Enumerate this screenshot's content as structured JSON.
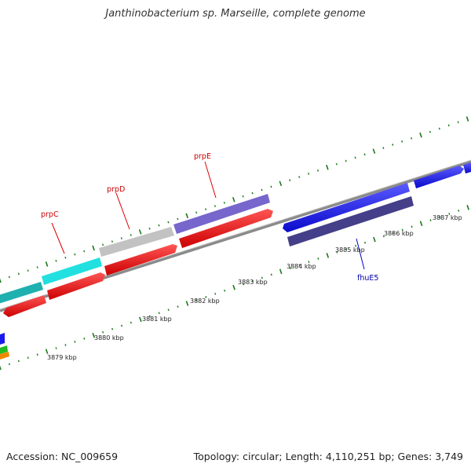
{
  "title": "Janthinobacterium sp. Marseille, complete genome",
  "footer": {
    "accession": "Accession: NC_009659",
    "summary": "Topology: circular; Length: 4,110,251 bp; Genes: 3,749"
  },
  "ruler": {
    "labels": [
      "3879 kbp",
      "3880 kbp",
      "3881 kbp",
      "3882 kbp",
      "3883 kbp",
      "3884 kbp",
      "3885 kbp",
      "3886 kbp",
      "3887 kbp"
    ],
    "color": "#1a7a1a"
  },
  "gene_labels": [
    {
      "name": "prpC",
      "color": "#cc0000"
    },
    {
      "name": "prpD",
      "color": "#cc0000"
    },
    {
      "name": "prpE",
      "color": "#cc0000"
    },
    {
      "name": "fhuE5",
      "color": "#0000aa"
    }
  ],
  "colors": {
    "backbone": "#888888",
    "red": "#ee1111",
    "cyan": "#22dddd",
    "teal": "#22b5b5",
    "gray": "#c0c0c0",
    "purple": "#7766cc",
    "blue": "#1a1aee",
    "navy": "#443f88",
    "green": "#22aa22",
    "orange": "#ee8800"
  }
}
